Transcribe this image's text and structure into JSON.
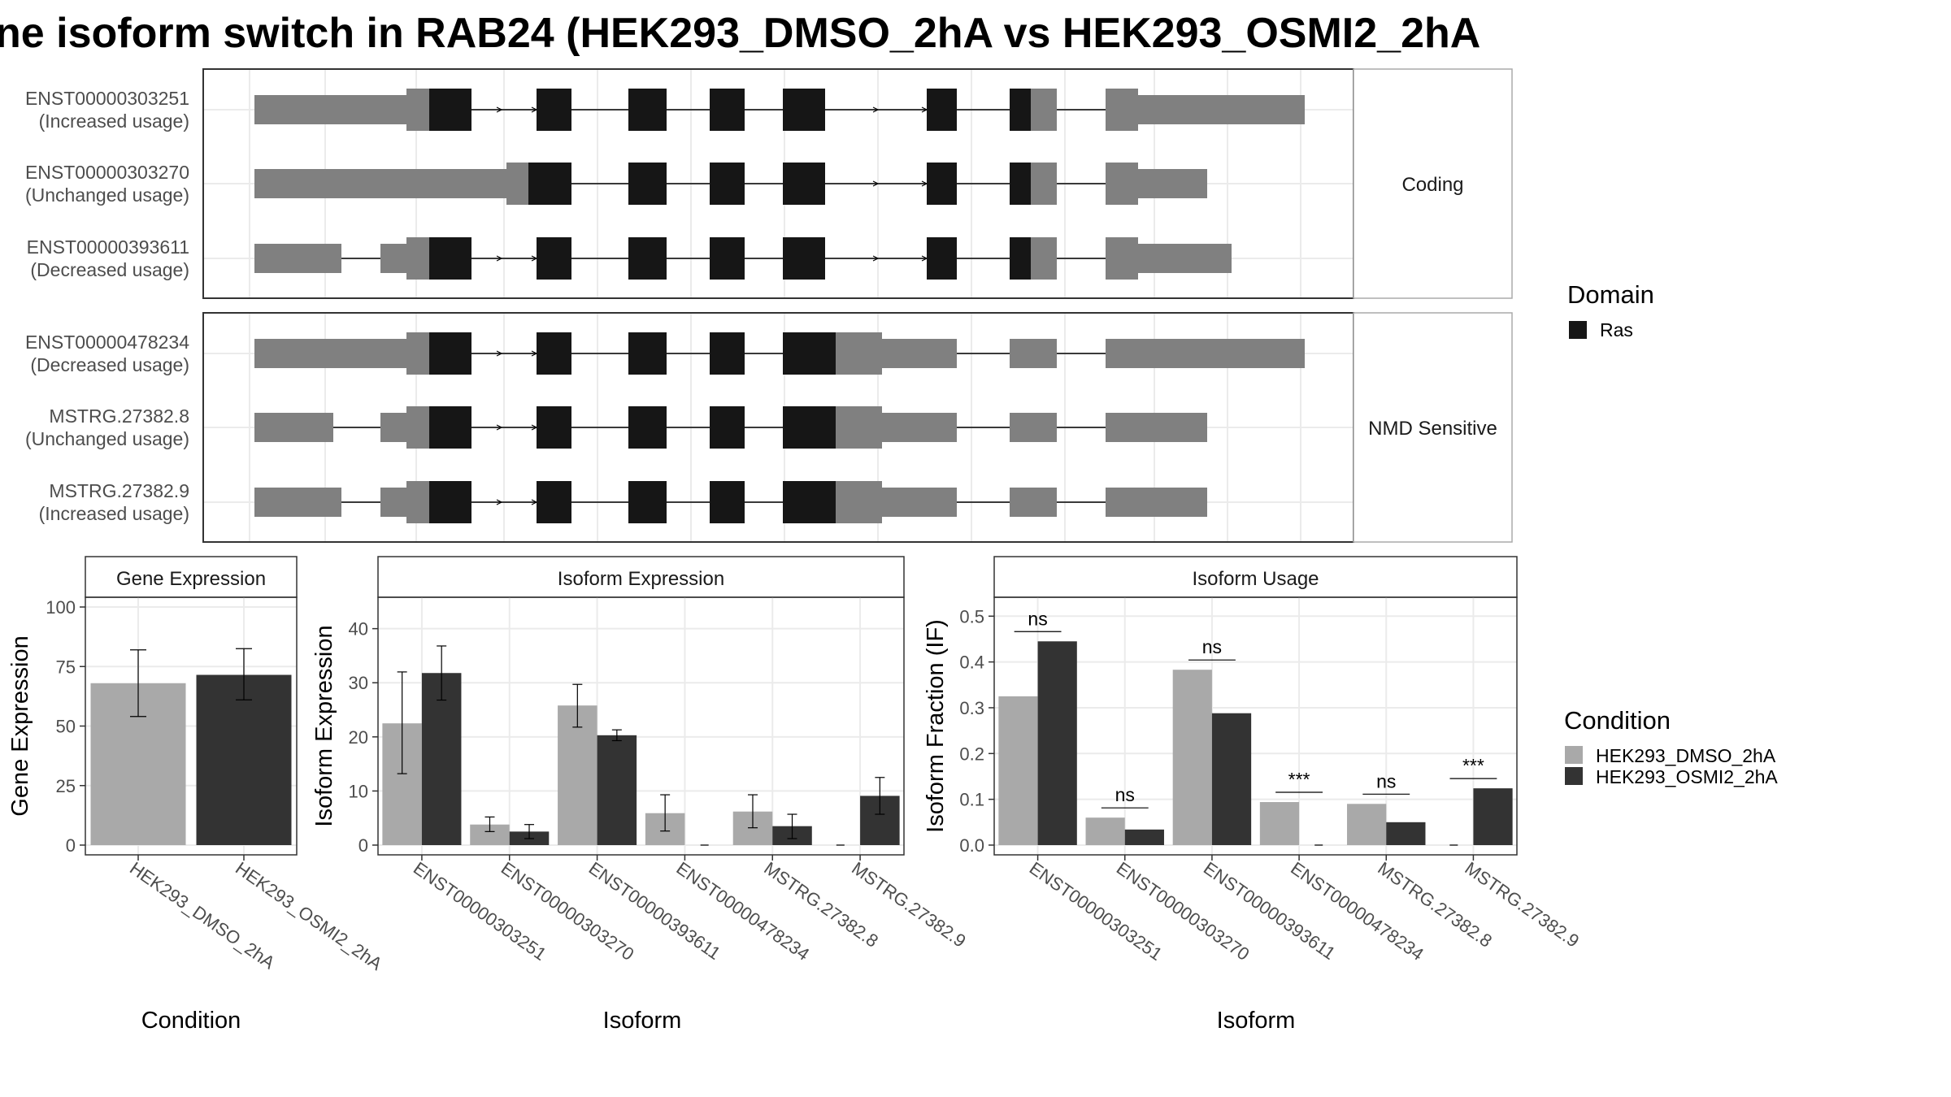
{
  "title": "ne isoform switch in RAB24 (HEK293_DMSO_2hA vs HEK293_OSMI2_2hA",
  "colors": {
    "utr": "#808080",
    "domain": "#161616",
    "dmso": "#a9a9a9",
    "osmi": "#333333",
    "grid": "#ebebeb",
    "frame": "#333333",
    "strip_bg": "#ffffff"
  },
  "structure_panels": [
    {
      "strip_label": "Coding",
      "transcripts": [
        {
          "id": "ENST00000303251",
          "usage": "(Increased usage)",
          "exons": [
            [
              0.05,
              0.1,
              "u"
            ],
            [
              0.11,
              0.19,
              "d"
            ],
            [
              0.2,
              0.55,
              "d"
            ],
            [
              0.65,
              0.72,
              "d"
            ],
            [
              0.74,
              0.79,
              "d"
            ],
            [
              0.81,
              0.85,
              "d"
            ],
            [
              0.92,
              0.96,
              "d"
            ],
            [
              1.07,
              1.09,
              "d"
            ],
            [
              1.11,
              1.14,
              "u"
            ]
          ],
          "utr_bars": [
            [
              0.05,
              0.33
            ],
            [
              0.93,
              0.97
            ],
            [
              1.16,
              1.36
            ]
          ]
        },
        {
          "id": "ENST00000303270",
          "usage": "(Unchanged usage)",
          "exons": [],
          "utr_bars": []
        },
        {
          "id": "ENST00000393611",
          "usage": "(Decreased usage)",
          "exons": [],
          "utr_bars": []
        }
      ]
    },
    {
      "strip_label": "NMD Sensitive",
      "transcripts": [
        {
          "id": "ENST00000478234",
          "usage": "(Decreased usage)"
        },
        {
          "id": "MSTRG.27382.8",
          "usage": "(Unchanged usage)"
        },
        {
          "id": "MSTRG.27382.9",
          "usage": "(Increased usage)"
        }
      ]
    }
  ],
  "legend_domain": {
    "title": "Domain",
    "items": [
      {
        "label": "Ras",
        "color": "#161616"
      }
    ]
  },
  "legend_condition": {
    "title": "Condition",
    "items": [
      {
        "label": "HEK293_DMSO_2hA",
        "color": "#a9a9a9"
      },
      {
        "label": "HEK293_OSMI2_2hA",
        "color": "#333333"
      }
    ]
  },
  "chart_data": [
    {
      "type": "bar",
      "title": "Gene Expression",
      "xlabel": "Condition",
      "ylabel": "Gene Expression",
      "ylim": [
        0,
        100
      ],
      "yticks": [
        0,
        25,
        50,
        75,
        100
      ],
      "categories": [
        "HEK293_DMSO_2hA",
        "HEK293_OSMI2_2hA"
      ],
      "values": [
        68,
        71.5
      ],
      "error": [
        [
          54,
          82
        ],
        [
          61,
          82.5
        ]
      ],
      "grid": true
    },
    {
      "type": "bar",
      "title": "Isoform Expression",
      "xlabel": "Isoform",
      "ylabel": "Isoform Expression",
      "ylim": [
        0,
        44
      ],
      "yticks": [
        0,
        10,
        20,
        30,
        40
      ],
      "categories": [
        "ENST00000303251",
        "ENST00000303270",
        "ENST00000393611",
        "ENST00000478234",
        "MSTRG.27382.8",
        "MSTRG.27382.9"
      ],
      "series": [
        {
          "name": "HEK293_DMSO_2hA",
          "values": [
            22.5,
            3.8,
            25.8,
            5.9,
            6.2,
            0
          ],
          "error": [
            [
              13.2,
              32
            ],
            [
              2.5,
              5.2
            ],
            [
              21.8,
              29.7
            ],
            [
              2.6,
              9.3
            ],
            [
              3.2,
              9.3
            ],
            [
              0,
              0
            ]
          ]
        },
        {
          "name": "HEK293_OSMI2_2hA",
          "values": [
            31.8,
            2.5,
            20.3,
            0,
            3.5,
            9.1
          ],
          "error": [
            [
              26.8,
              36.8
            ],
            [
              1.2,
              3.8
            ],
            [
              19.3,
              21.3
            ],
            [
              0,
              0
            ],
            [
              1.2,
              5.7
            ],
            [
              5.7,
              12.5
            ]
          ]
        }
      ],
      "grid": true
    },
    {
      "type": "bar",
      "title": "Isoform Usage",
      "xlabel": "Isoform",
      "ylabel": "Isoform Fraction (IF)",
      "ylim": [
        0,
        0.52
      ],
      "yticks": [
        "0.0",
        "0.1",
        "0.2",
        "0.3",
        "0.4",
        "0.5"
      ],
      "categories": [
        "ENST00000303251",
        "ENST00000303270",
        "ENST00000393611",
        "ENST00000478234",
        "MSTRG.27382.8",
        "MSTRG.27382.9"
      ],
      "series": [
        {
          "name": "HEK293_DMSO_2hA",
          "values": [
            0.325,
            0.06,
            0.383,
            0.094,
            0.09,
            0
          ]
        },
        {
          "name": "HEK293_OSMI2_2hA",
          "values": [
            0.445,
            0.034,
            0.288,
            0,
            0.05,
            0.124
          ]
        }
      ],
      "significance": [
        "ns",
        "ns",
        "ns",
        "***",
        "ns",
        "***"
      ],
      "grid": true
    }
  ]
}
